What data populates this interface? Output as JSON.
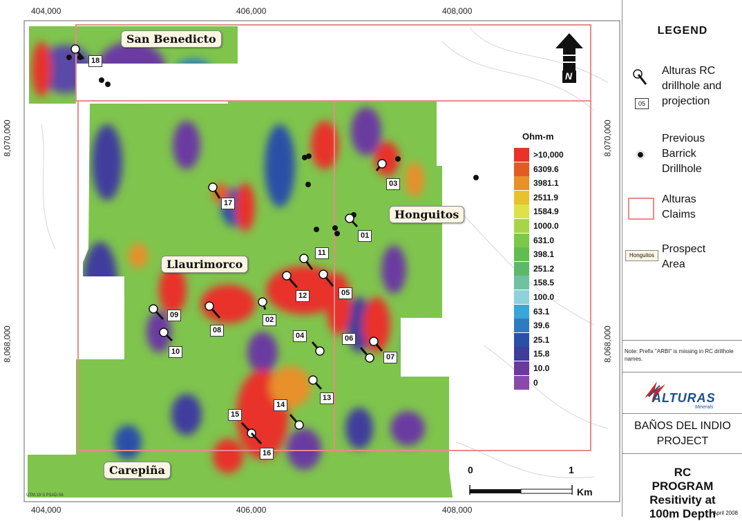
{
  "map": {
    "x_ticks": [
      "404,000",
      "406,000",
      "408,000"
    ],
    "y_ticks": [
      "8,070,000",
      "8,068,000"
    ],
    "utm_label": "UTM 19 S PSAD-56",
    "north_label": "N",
    "scale_labels": {
      "zero": "0",
      "one": "1",
      "unit": "Km"
    },
    "prospects": [
      "San Benedicto",
      "Honguitos",
      "Llaurimorco",
      "Carepiña"
    ],
    "drillholes": [
      "18",
      "17",
      "03",
      "01",
      "11",
      "12",
      "05",
      "09",
      "10",
      "08",
      "02",
      "04",
      "06",
      "07",
      "13",
      "14",
      "15",
      "16"
    ]
  },
  "resistivity_scale": {
    "title": "Ohm-m",
    "entries": [
      {
        "label": ">10,000",
        "color": "#e8322a"
      },
      {
        "label": "6309.6",
        "color": "#e45a24"
      },
      {
        "label": "3981.1",
        "color": "#e8902a"
      },
      {
        "label": "2511.9",
        "color": "#e9c02e"
      },
      {
        "label": "1584.9",
        "color": "#dbe347"
      },
      {
        "label": "1000.0",
        "color": "#a7d548"
      },
      {
        "label": "631.0",
        "color": "#7bc84a"
      },
      {
        "label": "398.1",
        "color": "#62bd4e"
      },
      {
        "label": "251.2",
        "color": "#5eb86a"
      },
      {
        "label": "158.5",
        "color": "#6fc1a2"
      },
      {
        "label": "100.0",
        "color": "#8fd1da"
      },
      {
        "label": "63.1",
        "color": "#3aa6d6"
      },
      {
        "label": "39.6",
        "color": "#2f7bc1"
      },
      {
        "label": "25.1",
        "color": "#2a4fa7"
      },
      {
        "label": "15.8",
        "color": "#3f3d9c"
      },
      {
        "label": "10.0",
        "color": "#6a3aa0"
      },
      {
        "label": "0",
        "color": "#8a4aab"
      }
    ]
  },
  "legend": {
    "title": "LEGEND",
    "rc_drillhole_text": "Alturas RC drillhole and projection",
    "rc_drillhole_sample": "05",
    "barrick_text": "Previous Barrick Drillhole",
    "claims_text": "Alturas Claims",
    "prospect_text": "Prospect Area",
    "prospect_sample": "Honguitos",
    "note": "Note: Prefix \"ARBI\" is missing in RC drillhole names.",
    "logo": "ALTURAS",
    "logo_sub": "Minerals",
    "project": "BAÑOS DEL INDIO PROJECT",
    "program_title": "RC PROGRAM Resitivity at 100m Depth",
    "date": "April 2008"
  }
}
